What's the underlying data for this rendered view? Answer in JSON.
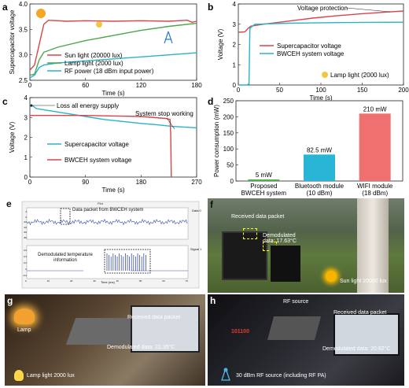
{
  "panels": {
    "a": {
      "label": "a",
      "ylabel": "Supercapacitor voltage",
      "xlabel": "Time (s)",
      "yticks": [
        "2.5",
        "3.0",
        "3.5",
        "4.0"
      ],
      "xticks": [
        "0",
        "60",
        "120",
        "180"
      ],
      "legend": [
        "Sun light (20000 lux)",
        "Lamp light (2000 lux)",
        "RF power (18 dBm input power)"
      ],
      "colors": [
        "#d9454a",
        "#4aa84a",
        "#2ab3c6"
      ]
    },
    "b": {
      "label": "b",
      "ylabel": "Voltage (V)",
      "xlabel": "Time (s)",
      "yticks": [
        "0",
        "1",
        "2",
        "3",
        "4"
      ],
      "xticks": [
        "0",
        "50",
        "100",
        "150",
        "200"
      ],
      "legend": [
        "Supercapacitor voltage",
        "BWCEH system voltage"
      ],
      "annotations": [
        "Voltage protection",
        "Lamp light (2000 lux)"
      ]
    },
    "c": {
      "label": "c",
      "ylabel": "Voltage (V)",
      "xlabel": "Time (s)",
      "yticks": [
        "0",
        "1",
        "2",
        "3",
        "4"
      ],
      "xticks": [
        "0",
        "90",
        "180",
        "270"
      ],
      "legend": [
        "Supercapacitor voltage",
        "BWCEH system voltage"
      ],
      "annotations": [
        "Loss all energy supply",
        "System stop working"
      ]
    },
    "d": {
      "label": "d",
      "ylabel": "Power consumption (mW)",
      "yticks": [
        "0",
        "50",
        "100",
        "150",
        "200",
        "250"
      ]
    },
    "e": {
      "label": "e",
      "title": "Plot",
      "xlabel": "Time (ms)",
      "top_annotation": "Data packet from BWCEH system",
      "bottom_annotation": "Demodulated temperature information",
      "legend_top": "Data 0",
      "legend_bottom": "Signal 1",
      "yticks_top": [
        "4",
        "0",
        "-20",
        "-40",
        "-60",
        "-80"
      ],
      "yticks_bottom": [
        "0.6",
        "0.4",
        "0.2",
        "0",
        "-0.2"
      ],
      "xticks": [
        "0",
        "10",
        "20",
        "30",
        "40",
        "50",
        "60",
        "70"
      ]
    },
    "f": {
      "label": "f",
      "received": "Received data packet",
      "demod": "Demodulated data: 17.63°C",
      "source": "Sun light 20000 lux"
    },
    "g": {
      "label": "g",
      "lamp": "Lamp",
      "received": "Received data packet",
      "demod": "Demodulated data: 21.35°C",
      "source": "Lamp light 2000 lux"
    },
    "h": {
      "label": "h",
      "rf": "RF source",
      "code": "101100",
      "received": "Received data packet",
      "demod": "Demodulated data: 20.82°C",
      "source": "30 dBm RF source (including RF PA)"
    }
  },
  "chart_data": [
    {
      "type": "line",
      "panel": "a",
      "ylim": [
        2.5,
        4.0
      ],
      "xlim": [
        0,
        180
      ],
      "series": [
        {
          "name": "Sun light (20000 lux)",
          "x": [
            0,
            5,
            10,
            15,
            20,
            40,
            60,
            90,
            120,
            150,
            170,
            175,
            180
          ],
          "y": [
            2.7,
            2.8,
            3.2,
            3.6,
            3.68,
            3.66,
            3.67,
            3.66,
            3.67,
            3.66,
            3.68,
            3.64,
            3.66
          ]
        },
        {
          "name": "Lamp light (2000 lux)",
          "x": [
            0,
            5,
            10,
            15,
            30,
            60,
            90,
            120,
            150,
            180
          ],
          "y": [
            2.6,
            2.62,
            2.9,
            3.05,
            3.15,
            3.28,
            3.38,
            3.48,
            3.56,
            3.62
          ]
        },
        {
          "name": "RF power (18 dBm input power)",
          "x": [
            0,
            5,
            10,
            15,
            30,
            60,
            90,
            120,
            150,
            180
          ],
          "y": [
            2.55,
            2.6,
            2.75,
            2.8,
            2.84,
            2.88,
            2.92,
            2.96,
            3.0,
            3.04
          ]
        }
      ]
    },
    {
      "type": "line",
      "panel": "b",
      "ylim": [
        0,
        4
      ],
      "xlim": [
        0,
        200
      ],
      "series": [
        {
          "name": "Supercapacitor voltage",
          "x": [
            0,
            8,
            12,
            15,
            30,
            60,
            90,
            120,
            150,
            180,
            200
          ],
          "y": [
            2.6,
            2.62,
            2.8,
            2.9,
            3.0,
            3.15,
            3.3,
            3.42,
            3.52,
            3.6,
            3.65
          ]
        },
        {
          "name": "BWCEH system voltage",
          "x": [
            0,
            10,
            13,
            14,
            20,
            60,
            120,
            200
          ],
          "y": [
            0,
            0,
            0.05,
            2.8,
            3.0,
            3.05,
            3.08,
            3.1
          ]
        }
      ]
    },
    {
      "type": "line",
      "panel": "c",
      "ylim": [
        0,
        4
      ],
      "xlim": [
        0,
        270
      ],
      "series": [
        {
          "name": "Supercapacitor voltage",
          "x": [
            0,
            5,
            10,
            30,
            60,
            90,
            120,
            150,
            180,
            210,
            230,
            260,
            270
          ],
          "y": [
            3.55,
            3.58,
            3.45,
            3.35,
            3.2,
            3.05,
            2.9,
            2.8,
            2.7,
            2.62,
            2.55,
            2.5,
            2.48
          ]
        },
        {
          "name": "BWCEH system voltage",
          "x": [
            0,
            30,
            90,
            180,
            220,
            227,
            228,
            229
          ],
          "y": [
            3.1,
            3.1,
            3.1,
            3.05,
            2.95,
            2.9,
            2.2,
            0
          ]
        }
      ]
    },
    {
      "type": "bar",
      "panel": "d",
      "ylim": [
        0,
        250
      ],
      "categories": [
        "Proposed BWCEH system",
        "Bluetooth module (10 dBm)",
        "WIFI module (18 dBm)"
      ],
      "values": [
        5,
        82.5,
        210
      ],
      "value_labels": [
        "5 mW",
        "82.5 mW",
        "210 mW"
      ],
      "colors": [
        "#4caf50",
        "#29b6d6",
        "#f07070"
      ]
    }
  ]
}
